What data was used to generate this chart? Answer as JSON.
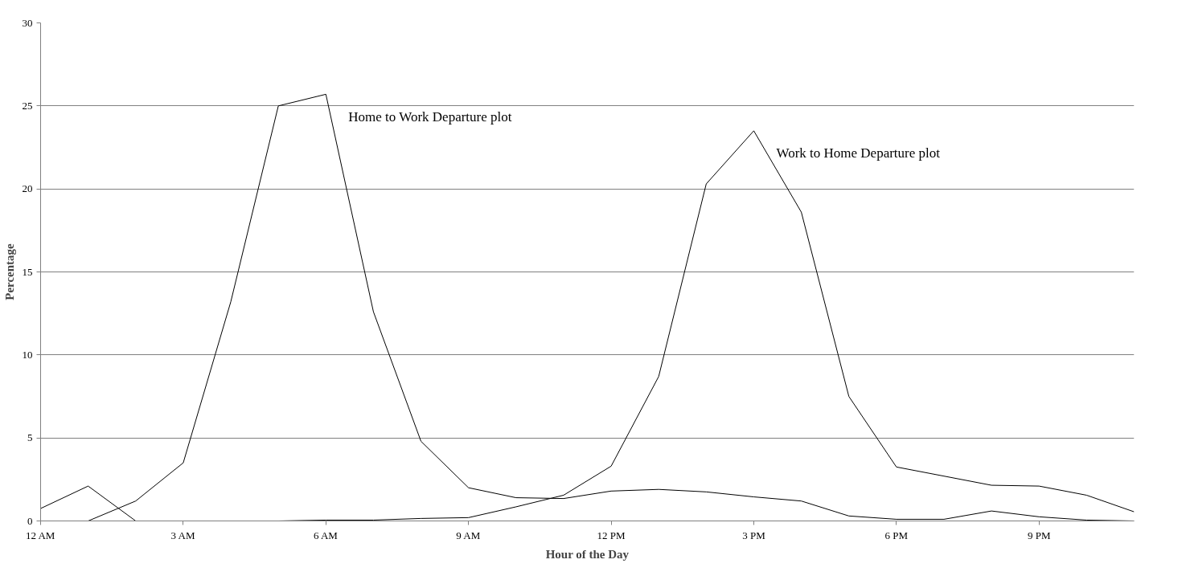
{
  "chart_data": {
    "type": "line",
    "xlabel": "Hour of the Day",
    "ylabel": "Percentage",
    "categories": [
      "12 AM",
      null,
      null,
      "3 AM",
      null,
      null,
      "6 AM",
      null,
      null,
      "9 AM",
      null,
      null,
      "12 PM",
      null,
      null,
      "3 PM",
      null,
      null,
      "6 PM",
      null,
      null,
      "9 PM",
      null,
      null
    ],
    "series": [
      {
        "name": "Home to Work Departure plot",
        "color": "#000000",
        "values": [
          null,
          0,
          1.2,
          3.5,
          13.2,
          25,
          25.7,
          12.6,
          4.8,
          2.0,
          1.4,
          1.35,
          1.8,
          1.9,
          1.75,
          1.45,
          1.2,
          0.3,
          0.1,
          0.1,
          0.6,
          0.25,
          0.05,
          0
        ]
      },
      {
        "name": "Work to Home Departure plot",
        "color": "#000000",
        "values": [
          0.75,
          2.1,
          0,
          0,
          0,
          0,
          0.05,
          0.05,
          0.15,
          0.2,
          0.85,
          1.55,
          3.3,
          8.7,
          20.3,
          23.5,
          18.6,
          7.5,
          3.25,
          2.7,
          2.15,
          2.1,
          1.55,
          0.55
        ]
      }
    ],
    "ylim": [
      0,
      30
    ],
    "yticks": [
      0,
      5,
      10,
      15,
      20,
      25,
      30
    ],
    "grid": "y",
    "marker": "none",
    "line_style": "solid"
  }
}
